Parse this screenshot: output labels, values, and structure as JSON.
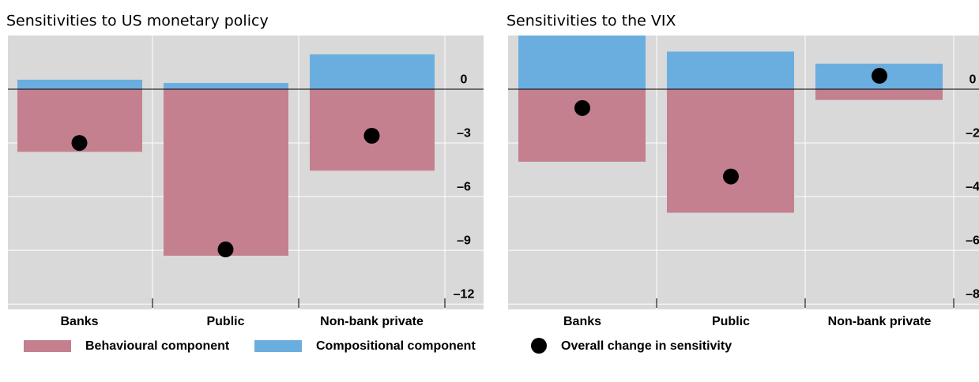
{
  "chart_data": [
    {
      "type": "bar",
      "title": "Sensitivities to US monetary policy",
      "categories": [
        "Banks",
        "Public",
        "Non-bank private"
      ],
      "series": [
        {
          "name": "Behavioural component",
          "color": "#c4808e",
          "values": [
            -3.5,
            -9.3,
            -4.55
          ]
        },
        {
          "name": "Compositional component",
          "color": "#6aaee0",
          "values": [
            0.53,
            0.35,
            1.95
          ]
        },
        {
          "color": "#000000",
          "marker": "dot",
          "values": [
            -3.0,
            -8.95,
            -2.6
          ]
        }
      ],
      "ylim": [
        -12.3,
        3
      ],
      "yticks": [
        {
          "value": 0,
          "label": "0"
        },
        {
          "value": -3,
          "label": "–3"
        },
        {
          "value": -6,
          "label": "–6"
        },
        {
          "value": -9,
          "label": "–9"
        },
        {
          "value": -12,
          "label": "–12"
        }
      ],
      "grid": true
    },
    {
      "type": "bar",
      "title": "Sensitivities to the VIX",
      "categories": [
        "Banks",
        "Public",
        "Non-bank private"
      ],
      "series": [
        {
          "color": "#c4808e",
          "values": [
            -2.7,
            -4.6,
            -0.4
          ]
        },
        {
          "color": "#6aaee0",
          "values": [
            2.2,
            1.4,
            0.95
          ]
        },
        {
          "name": "Overall change in sensitivity",
          "color": "#000000",
          "marker": "dot",
          "values": [
            -0.7,
            -3.25,
            0.5
          ]
        }
      ],
      "ylim": [
        -8.2,
        2
      ],
      "yticks": [
        {
          "value": 0,
          "label": "0"
        },
        {
          "value": -2,
          "label": "–2"
        },
        {
          "value": -4,
          "label": "–4"
        },
        {
          "value": -6,
          "label": "–6"
        },
        {
          "value": -8,
          "label": "–8"
        }
      ],
      "grid": true
    }
  ]
}
